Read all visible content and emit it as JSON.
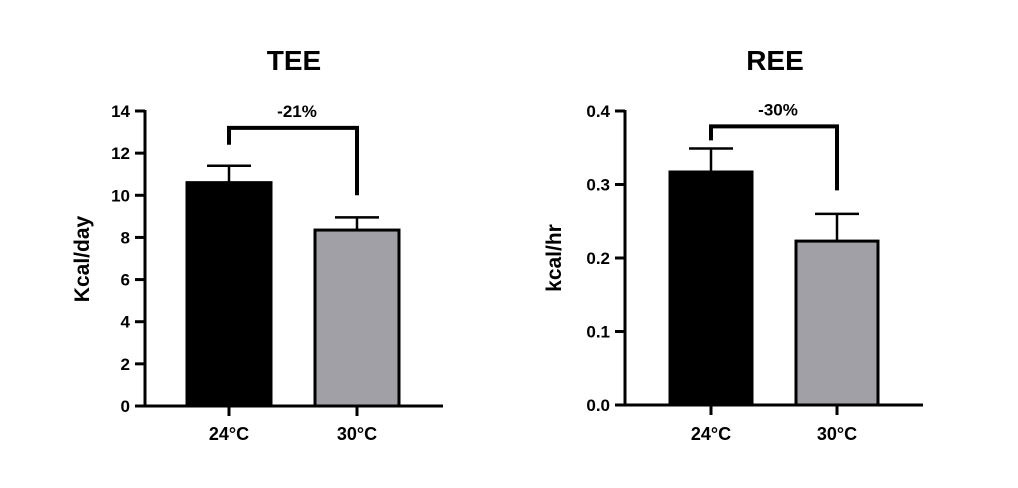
{
  "chart_data": [
    {
      "type": "bar",
      "title": "TEE",
      "ylabel": "Kcal/day",
      "categories": [
        "24°C",
        "30°C"
      ],
      "values": [
        10.6,
        8.35
      ],
      "errors": [
        0.8,
        0.6
      ],
      "ylim": [
        0,
        14
      ],
      "yticks": [
        "0",
        "2",
        "4",
        "6",
        "8",
        "10",
        "12",
        "14"
      ],
      "ytick_values": [
        0,
        2,
        4,
        6,
        8,
        10,
        12,
        14
      ],
      "bar_colors": [
        "#000000",
        "#a1a0a6"
      ],
      "annotation": "-21%",
      "bracket_top": 13.2,
      "bracket_ends": [
        12.4,
        10.0
      ],
      "grid": false,
      "legend": "none"
    },
    {
      "type": "bar",
      "title": "REE",
      "ylabel": "kcal/hr",
      "categories": [
        "24°C",
        "30°C"
      ],
      "values": [
        0.317,
        0.223
      ],
      "errors": [
        0.032,
        0.037
      ],
      "ylim": [
        0,
        0.4
      ],
      "yticks": [
        "0.0",
        "0.1",
        "0.2",
        "0.3",
        "0.4"
      ],
      "ytick_values": [
        0,
        0.1,
        0.2,
        0.3,
        0.4
      ],
      "bar_colors": [
        "#000000",
        "#a1a0a6"
      ],
      "annotation": "-30%",
      "bracket_top": 0.379,
      "bracket_ends": [
        0.36,
        0.292
      ],
      "grid": false,
      "legend": "none"
    }
  ]
}
